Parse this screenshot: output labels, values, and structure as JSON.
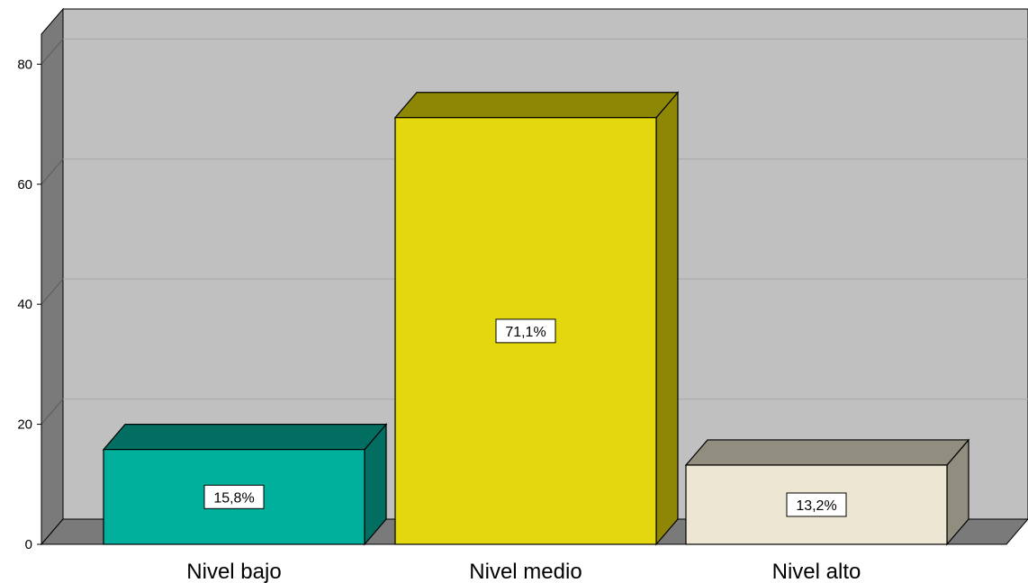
{
  "chart_data": {
    "type": "bar",
    "categories": [
      "Nivel bajo",
      "Nivel medio",
      "Nivel alto"
    ],
    "values": [
      15.8,
      71.1,
      13.2
    ],
    "data_labels": [
      "15,8%",
      "71,1%",
      "13,2%"
    ],
    "yticks": [
      0,
      20,
      40,
      60,
      80
    ],
    "ylim": [
      0,
      85
    ],
    "grid": true,
    "three_d": true,
    "colors": {
      "bars": [
        "#00B09C",
        "#E3D80E",
        "#EDE6D2"
      ],
      "bar_tops": [
        "#016E61",
        "#8E8605",
        "#918D7F"
      ],
      "bar_sides": [
        "#016E61",
        "#8E8605",
        "#918D7F"
      ],
      "wall_back": "#C0C0C0",
      "wall_side": "#7A7A7A",
      "floor": "#7A7A7A",
      "gridline": "#A8A8A8"
    }
  }
}
